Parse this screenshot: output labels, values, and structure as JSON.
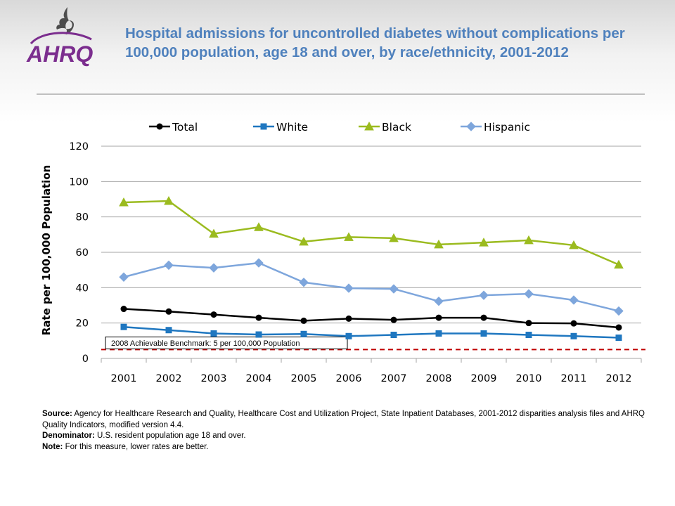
{
  "header": {
    "logo_text": "AHRQ",
    "title": "Hospital admissions for uncontrolled diabetes without complications per 100,000 population, age 18 and over, by race/ethnicity, 2001-2012"
  },
  "colors": {
    "title": "#4f81bd",
    "benchmark_line": "#c00000",
    "series": {
      "Total": "#000000",
      "White": "#1f77c0",
      "Black": "#9bbb1f",
      "Hispanic": "#7ea6dc"
    }
  },
  "chart_data": {
    "type": "line",
    "ylabel": "Rate per 100,000 Population",
    "xlabel": "",
    "ylim": [
      0,
      120
    ],
    "yticks": [
      0,
      20,
      40,
      60,
      80,
      100,
      120
    ],
    "grid": true,
    "legend_position": "top",
    "categories": [
      "2001",
      "2002",
      "2003",
      "2004",
      "2005",
      "2006",
      "2007",
      "2008",
      "2009",
      "2010",
      "2011",
      "2012"
    ],
    "series": [
      {
        "name": "Total",
        "marker": "circle",
        "values": [
          28,
          26.5,
          24.8,
          23,
          21.3,
          22.5,
          21.8,
          23,
          23,
          20,
          19.8,
          17.5
        ]
      },
      {
        "name": "White",
        "marker": "square",
        "values": [
          17.8,
          16,
          14.1,
          13.5,
          13.8,
          12.6,
          13.3,
          14.1,
          14.1,
          13.3,
          12.6,
          11.7
        ]
      },
      {
        "name": "Black",
        "marker": "triangle",
        "values": [
          88.2,
          89,
          70.5,
          74.2,
          66,
          68.6,
          68,
          64.4,
          65.5,
          66.8,
          64,
          53
        ]
      },
      {
        "name": "Hispanic",
        "marker": "diamond",
        "values": [
          46,
          52.7,
          51.2,
          54,
          43,
          39.7,
          39.3,
          32.3,
          35.7,
          36.5,
          33,
          26.8
        ]
      }
    ],
    "benchmark": {
      "value": 5,
      "label": "2008 Achievable Benchmark:  5 per 100,000 Population"
    }
  },
  "notes": {
    "source_label": "Source:",
    "source_text": "Agency for Healthcare Research and Quality, Healthcare Cost and Utilization Project, State Inpatient Databases, 2001-2012  disparities analysis files and AHRQ Quality Indicators, modified version 4.4.",
    "denominator_label": "Denominator:",
    "denominator_text": "U.S. resident population age 18 and over.",
    "note_label": "Note:",
    "note_text": "For this measure,  lower rates are better."
  }
}
